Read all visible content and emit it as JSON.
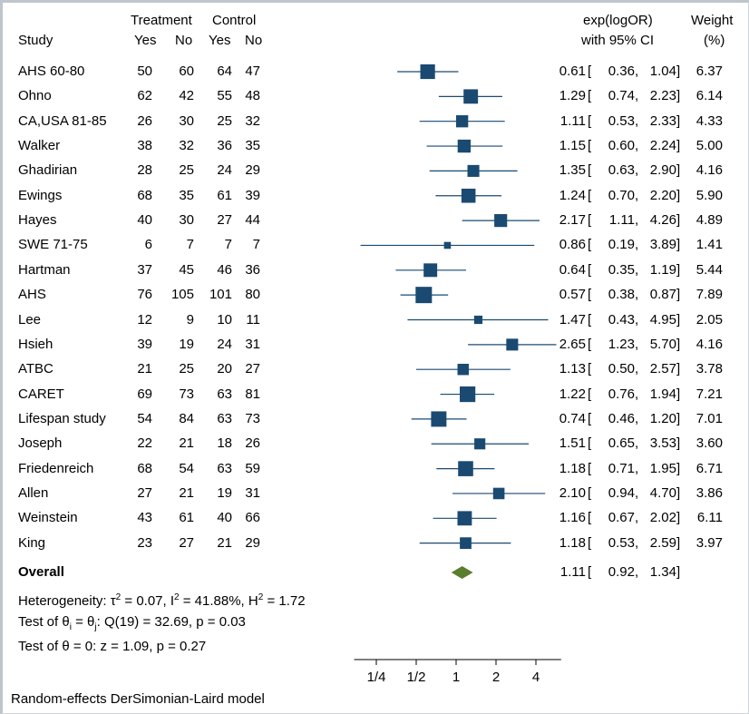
{
  "chart_data": {
    "type": "forest",
    "headers": {
      "study": "Study",
      "treatment": "Treatment",
      "control": "Control",
      "yes": "Yes",
      "no": "No",
      "effect_line1": "exp(logOR)",
      "effect_line2": "with 95% CI",
      "weight_line1": "Weight",
      "weight_line2": "(%)"
    },
    "studies": [
      {
        "name": "AHS 60-80",
        "t_yes": "50",
        "t_no": "60",
        "c_yes": "64",
        "c_no": "47",
        "or": 0.61,
        "lo": 0.36,
        "hi": 1.04,
        "or_text": "0.61",
        "lo_text": "0.36",
        "hi_text": "1.04",
        "weight": 6.37,
        "weight_text": "6.37"
      },
      {
        "name": "Ohno",
        "t_yes": "62",
        "t_no": "42",
        "c_yes": "55",
        "c_no": "48",
        "or": 1.29,
        "lo": 0.74,
        "hi": 2.23,
        "or_text": "1.29",
        "lo_text": "0.74",
        "hi_text": "2.23",
        "weight": 6.14,
        "weight_text": "6.14"
      },
      {
        "name": "CA,USA 81-85",
        "t_yes": "26",
        "t_no": "30",
        "c_yes": "25",
        "c_no": "32",
        "or": 1.11,
        "lo": 0.53,
        "hi": 2.33,
        "or_text": "1.11",
        "lo_text": "0.53",
        "hi_text": "2.33",
        "weight": 4.33,
        "weight_text": "4.33"
      },
      {
        "name": "Walker",
        "t_yes": "38",
        "t_no": "32",
        "c_yes": "36",
        "c_no": "35",
        "or": 1.15,
        "lo": 0.6,
        "hi": 2.24,
        "or_text": "1.15",
        "lo_text": "0.60",
        "hi_text": "2.24",
        "weight": 5.0,
        "weight_text": "5.00"
      },
      {
        "name": "Ghadirian",
        "t_yes": "28",
        "t_no": "25",
        "c_yes": "24",
        "c_no": "29",
        "or": 1.35,
        "lo": 0.63,
        "hi": 2.9,
        "or_text": "1.35",
        "lo_text": "0.63",
        "hi_text": "2.90",
        "weight": 4.16,
        "weight_text": "4.16"
      },
      {
        "name": "Ewings",
        "t_yes": "68",
        "t_no": "35",
        "c_yes": "61",
        "c_no": "39",
        "or": 1.24,
        "lo": 0.7,
        "hi": 2.2,
        "or_text": "1.24",
        "lo_text": "0.70",
        "hi_text": "2.20",
        "weight": 5.9,
        "weight_text": "5.90"
      },
      {
        "name": "Hayes",
        "t_yes": "40",
        "t_no": "30",
        "c_yes": "27",
        "c_no": "44",
        "or": 2.17,
        "lo": 1.11,
        "hi": 4.26,
        "or_text": "2.17",
        "lo_text": "1.11",
        "hi_text": "4.26",
        "weight": 4.89,
        "weight_text": "4.89"
      },
      {
        "name": "SWE 71-75",
        "t_yes": "6",
        "t_no": "7",
        "c_yes": "7",
        "c_no": "7",
        "or": 0.86,
        "lo": 0.19,
        "hi": 3.89,
        "or_text": "0.86",
        "lo_text": "0.19",
        "hi_text": "3.89",
        "weight": 1.41,
        "weight_text": "1.41"
      },
      {
        "name": "Hartman",
        "t_yes": "37",
        "t_no": "45",
        "c_yes": "46",
        "c_no": "36",
        "or": 0.64,
        "lo": 0.35,
        "hi": 1.19,
        "or_text": "0.64",
        "lo_text": "0.35",
        "hi_text": "1.19",
        "weight": 5.44,
        "weight_text": "5.44"
      },
      {
        "name": "AHS",
        "t_yes": "76",
        "t_no": "105",
        "c_yes": "101",
        "c_no": "80",
        "or": 0.57,
        "lo": 0.38,
        "hi": 0.87,
        "or_text": "0.57",
        "lo_text": "0.38",
        "hi_text": "0.87",
        "weight": 7.89,
        "weight_text": "7.89"
      },
      {
        "name": "Lee",
        "t_yes": "12",
        "t_no": "9",
        "c_yes": "10",
        "c_no": "11",
        "or": 1.47,
        "lo": 0.43,
        "hi": 4.95,
        "or_text": "1.47",
        "lo_text": "0.43",
        "hi_text": "4.95",
        "weight": 2.05,
        "weight_text": "2.05"
      },
      {
        "name": "Hsieh",
        "t_yes": "39",
        "t_no": "19",
        "c_yes": "24",
        "c_no": "31",
        "or": 2.65,
        "lo": 1.23,
        "hi": 5.7,
        "or_text": "2.65",
        "lo_text": "1.23",
        "hi_text": "5.70",
        "weight": 4.16,
        "weight_text": "4.16"
      },
      {
        "name": "ATBC",
        "t_yes": "21",
        "t_no": "25",
        "c_yes": "20",
        "c_no": "27",
        "or": 1.13,
        "lo": 0.5,
        "hi": 2.57,
        "or_text": "1.13",
        "lo_text": "0.50",
        "hi_text": "2.57",
        "weight": 3.78,
        "weight_text": "3.78"
      },
      {
        "name": "CARET",
        "t_yes": "69",
        "t_no": "73",
        "c_yes": "63",
        "c_no": "81",
        "or": 1.22,
        "lo": 0.76,
        "hi": 1.94,
        "or_text": "1.22",
        "lo_text": "0.76",
        "hi_text": "1.94",
        "weight": 7.21,
        "weight_text": "7.21"
      },
      {
        "name": "Lifespan study",
        "t_yes": "54",
        "t_no": "84",
        "c_yes": "63",
        "c_no": "73",
        "or": 0.74,
        "lo": 0.46,
        "hi": 1.2,
        "or_text": "0.74",
        "lo_text": "0.46",
        "hi_text": "1.20",
        "weight": 7.01,
        "weight_text": "7.01"
      },
      {
        "name": "Joseph",
        "t_yes": "22",
        "t_no": "21",
        "c_yes": "18",
        "c_no": "26",
        "or": 1.51,
        "lo": 0.65,
        "hi": 3.53,
        "or_text": "1.51",
        "lo_text": "0.65",
        "hi_text": "3.53",
        "weight": 3.6,
        "weight_text": "3.60"
      },
      {
        "name": "Friedenreich",
        "t_yes": "68",
        "t_no": "54",
        "c_yes": "63",
        "c_no": "59",
        "or": 1.18,
        "lo": 0.71,
        "hi": 1.95,
        "or_text": "1.18",
        "lo_text": "0.71",
        "hi_text": "1.95",
        "weight": 6.71,
        "weight_text": "6.71"
      },
      {
        "name": "Allen",
        "t_yes": "27",
        "t_no": "21",
        "c_yes": "19",
        "c_no": "31",
        "or": 2.1,
        "lo": 0.94,
        "hi": 4.7,
        "or_text": "2.10",
        "lo_text": "0.94",
        "hi_text": "4.70",
        "weight": 3.86,
        "weight_text": "3.86"
      },
      {
        "name": "Weinstein",
        "t_yes": "43",
        "t_no": "61",
        "c_yes": "40",
        "c_no": "66",
        "or": 1.16,
        "lo": 0.67,
        "hi": 2.02,
        "or_text": "1.16",
        "lo_text": "0.67",
        "hi_text": "2.02",
        "weight": 6.11,
        "weight_text": "6.11"
      },
      {
        "name": "King",
        "t_yes": "23",
        "t_no": "27",
        "c_yes": "21",
        "c_no": "29",
        "or": 1.18,
        "lo": 0.53,
        "hi": 2.59,
        "or_text": "1.18",
        "lo_text": "0.53",
        "hi_text": "2.59",
        "weight": 3.97,
        "weight_text": "3.97"
      }
    ],
    "overall": {
      "label": "Overall",
      "or": 1.11,
      "lo": 0.92,
      "hi": 1.34,
      "or_text": "1.11",
      "lo_text": "0.92",
      "hi_text": "1.34"
    },
    "heterogeneity": {
      "prefix": "Heterogeneity: τ",
      "tau_exp": "2",
      "tau_val": " = 0.07, I",
      "i_exp": "2",
      "i_val": " = 41.88%, H",
      "h_exp": "2",
      "h_val": " = 1.72"
    },
    "test_homogeneity": {
      "prefix": "Test of θ",
      "sub_i": "i",
      "mid": " = θ",
      "sub_j": "j",
      "rest": ": Q(19) = 32.69, p = 0.03"
    },
    "test_effect": "Test of θ = 0: z = 1.09, p = 0.27",
    "x_axis": {
      "scale": "log",
      "ticks": [
        0.25,
        0.5,
        1,
        2,
        4
      ],
      "tick_labels": [
        "1/4",
        "1/2",
        "1",
        "2",
        "4"
      ],
      "range": [
        0.17,
        6.2
      ]
    },
    "footnote": "Random-effects DerSimonian-Laird model",
    "colors": {
      "marker": "#1a4a72",
      "overall": "#5b7d2e",
      "text": "#000000",
      "axis": "#000000"
    }
  }
}
